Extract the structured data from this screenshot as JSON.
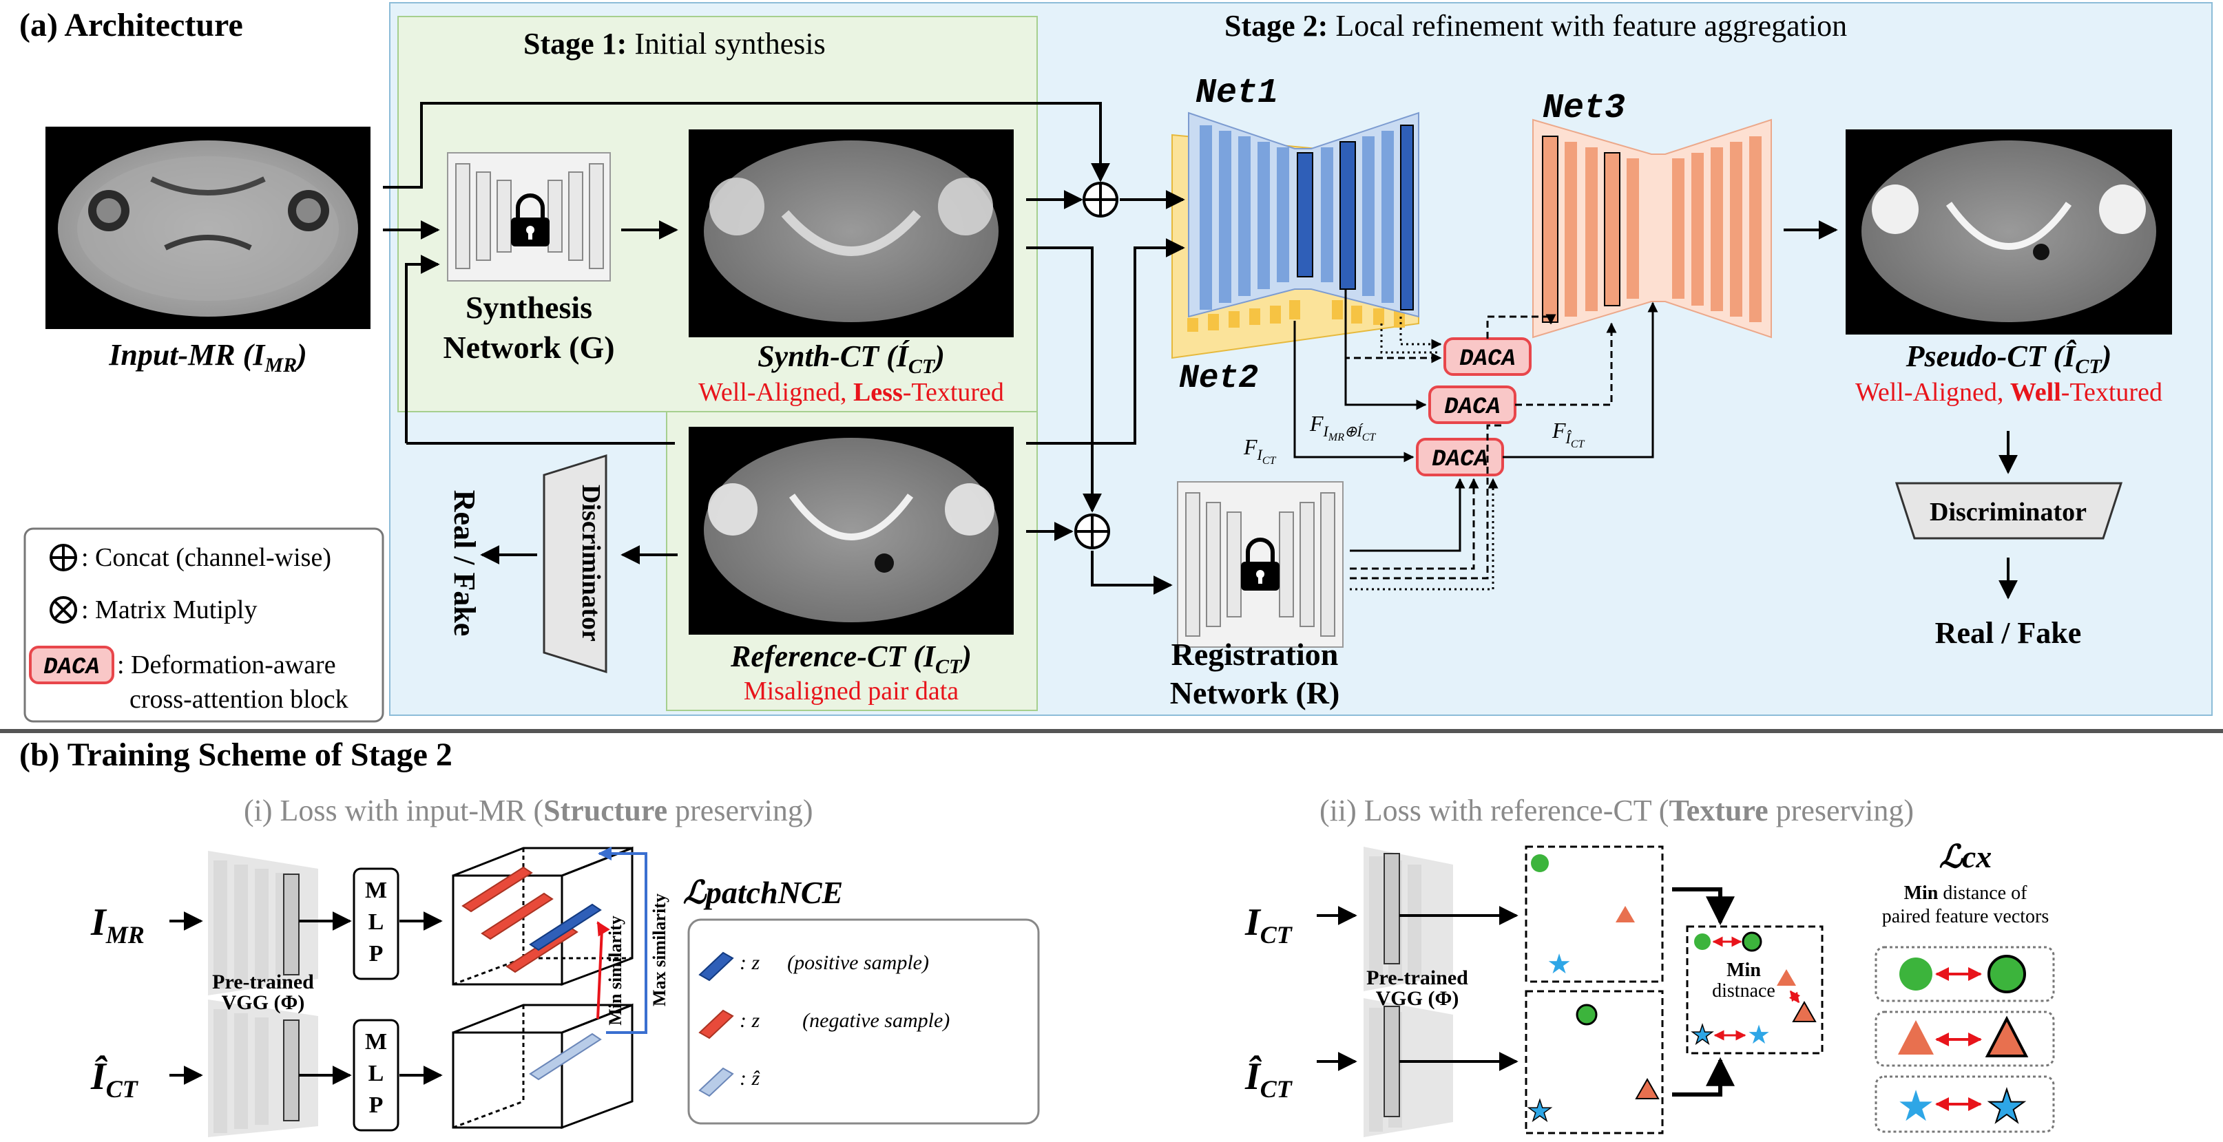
{
  "section_a": {
    "title": "(a) Architecture",
    "stage1_bold": "Stage 1:",
    "stage1_text": " Initial synthesis",
    "stage2_bold": "Stage 2:",
    "stage2_text": " Local refinement with feature aggregation"
  },
  "images": {
    "input_mr": "Input-MR (I",
    "input_mr_sub": "MR",
    "input_mr_close": ")",
    "synth_ct": "Synth-CT (Í",
    "synth_ct_sub": "CT",
    "synth_ct_close": ")",
    "synth_ct_caption_pre": "Well-Aligned, ",
    "synth_ct_caption_bold": "Less",
    "synth_ct_caption_post": "-Textured",
    "reference_ct": "Reference-CT (I",
    "reference_ct_sub": "CT",
    "reference_ct_close": ")",
    "reference_ct_caption": "Misaligned pair data",
    "pseudo_ct": "Pseudo-CT (Î",
    "pseudo_ct_sub": "CT",
    "pseudo_ct_close": ")",
    "pseudo_ct_caption_pre": "Well-Aligned, ",
    "pseudo_ct_caption_bold": "Well",
    "pseudo_ct_caption_post": "-Textured"
  },
  "networks": {
    "synthesis_line1": "Synthesis",
    "synthesis_line2": "Network (G)",
    "registration_line1": "Registration",
    "registration_line2": "Network (R)",
    "net1": "Net1",
    "net2": "Net2",
    "net3": "Net3",
    "daca": "DACA",
    "discriminator": "Discriminator",
    "real_fake": "Real / Fake"
  },
  "features": {
    "f_ict": "F",
    "f_ict_sub": "I",
    "f_ict_subsub": "CT",
    "f_concat": "F",
    "f_concat_sub": "I",
    "f_concat_subsub": "MR",
    "f_concat_mid": "⊕Í",
    "f_concat_subsub2": "CT",
    "f_hat": "F",
    "f_hat_sub": "Î",
    "f_hat_subsub": "CT"
  },
  "legend": {
    "concat_symbol": "⊕",
    "concat_text": ": Concat (channel-wise)",
    "multiply_symbol": "⊗",
    "multiply_text": ": Matrix Mutiply",
    "daca_text_line1": ": Deformation-aware",
    "daca_text_line2": "cross-attention block"
  },
  "section_b": {
    "title": "(b) Training Scheme of Stage 2",
    "loss1_pre": "(i) Loss with input-MR (",
    "loss1_bold": "Structure",
    "loss1_post": " preserving)",
    "loss2_pre": "(ii) Loss with reference-CT (",
    "loss2_bold": "Texture",
    "loss2_post": " preserving)",
    "i_mr": "I",
    "i_mr_sub": "MR",
    "i_hat_ct": "Î",
    "i_hat_ct_sub": "CT",
    "i_ct": "I",
    "i_ct_sub": "CT",
    "vgg_line1": "Pre-trained",
    "vgg_line2": "VGG (Φ)",
    "mlp": [
      "M",
      "L",
      "P"
    ],
    "min_similarity": "Min similarity",
    "max_similarity": "Max similarity",
    "patchnce_title": "ℒpatchNCE",
    "patchnce_positive": ": z",
    "patchnce_positive_label": "(positive sample)",
    "patchnce_negative": ": z",
    "patchnce_negative_label": "(negative sample)",
    "patchnce_hat": ": ẑ",
    "cx_title": "ℒcx",
    "cx_desc_bold": "Min",
    "cx_desc_post": " distance of",
    "cx_desc_line2": "paired feature vectors",
    "min_distance_line1": "Min",
    "min_distance_line2": "distnace"
  },
  "colors": {
    "stage1_bg": "#eaf4e2",
    "stage2_bg": "#e4f2fa",
    "net1_blue": "#2f5fb8",
    "net1_light": "#7ba3dd",
    "net2_yellow": "#f6c343",
    "net3_orange": "#f2a07b",
    "daca_fill": "#f9c7c7",
    "daca_stroke": "#e8464b",
    "caption_red": "#e8141b",
    "green": "#3cb43c",
    "orange": "#e8704f",
    "sky": "#2ea6e6"
  }
}
